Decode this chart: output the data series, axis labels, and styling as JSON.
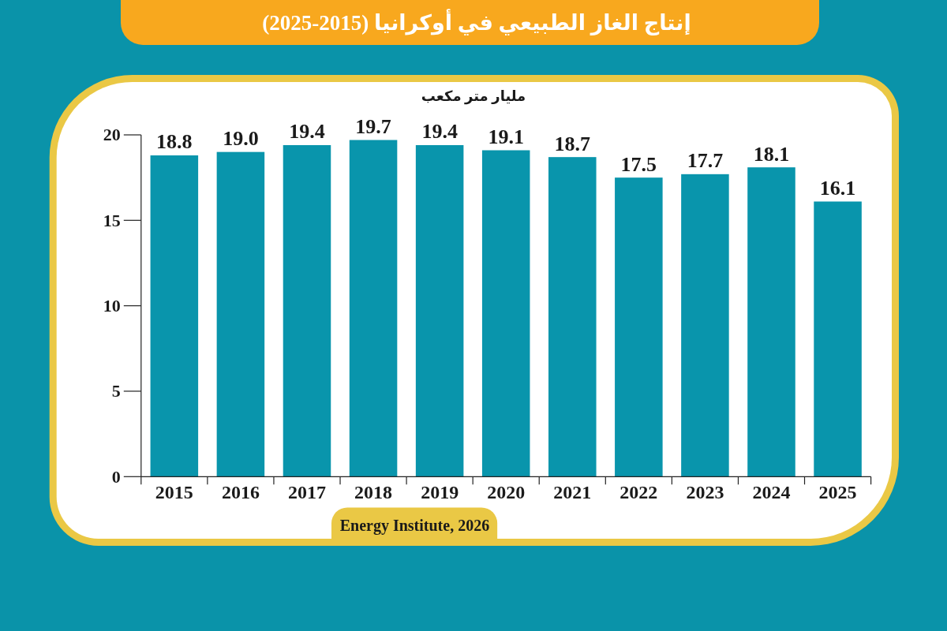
{
  "chart_data": {
    "type": "bar",
    "title": "إنتاج الغاز الطبيعي في أوكرانيا (2015-2025)",
    "ylabel": "مليار متر مكعب",
    "categories": [
      "2015",
      "2016",
      "2017",
      "2018",
      "2019",
      "2020",
      "2021",
      "2022",
      "2023",
      "2024",
      "2025"
    ],
    "values": [
      18.8,
      19.0,
      19.4,
      19.7,
      19.4,
      19.1,
      18.7,
      17.5,
      17.7,
      18.1,
      16.1
    ],
    "value_labels": [
      "18.8",
      "19.0",
      "19.4",
      "19.7",
      "19.4",
      "19.1",
      "18.7",
      "17.5",
      "17.7",
      "18.1",
      "16.1"
    ],
    "color": "#0995ac",
    "ylim": [
      0,
      20
    ],
    "yticks": [
      0,
      5,
      10,
      15,
      20
    ],
    "annotations": [
      "Energy Institute, 2026"
    ]
  }
}
